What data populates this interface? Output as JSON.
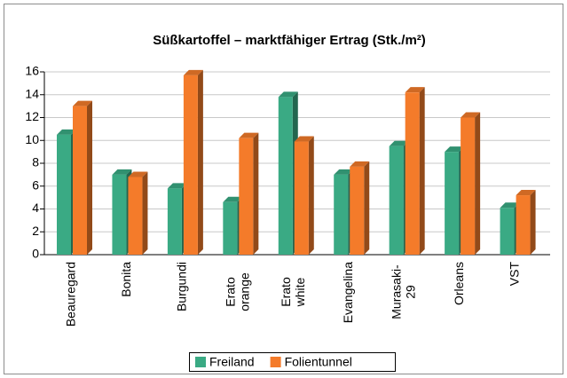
{
  "chart_data": {
    "type": "bar",
    "title": "Süßkartoffel – marktfähiger Ertrag (Stk./m²)",
    "categories": [
      "Beauregard",
      "Bonita",
      "Burgundi",
      "Erato orange",
      "Erato white",
      "Evangelina",
      "Murasaki-29",
      "Orleans",
      "VST"
    ],
    "series": [
      {
        "name": "Freiland",
        "color": "#3aaa84",
        "values": [
          10.5,
          7.0,
          5.8,
          4.6,
          13.8,
          7.0,
          9.5,
          9.0,
          4.1
        ]
      },
      {
        "name": "Folientunnel",
        "color": "#f47b2a",
        "values": [
          13.0,
          6.8,
          15.7,
          10.2,
          9.9,
          7.7,
          14.2,
          12.0,
          5.2
        ]
      }
    ],
    "ylim": [
      0,
      16
    ],
    "yticks": [
      0,
      2,
      4,
      6,
      8,
      10,
      12,
      14,
      16
    ],
    "grid": true,
    "legend": "bottom"
  }
}
